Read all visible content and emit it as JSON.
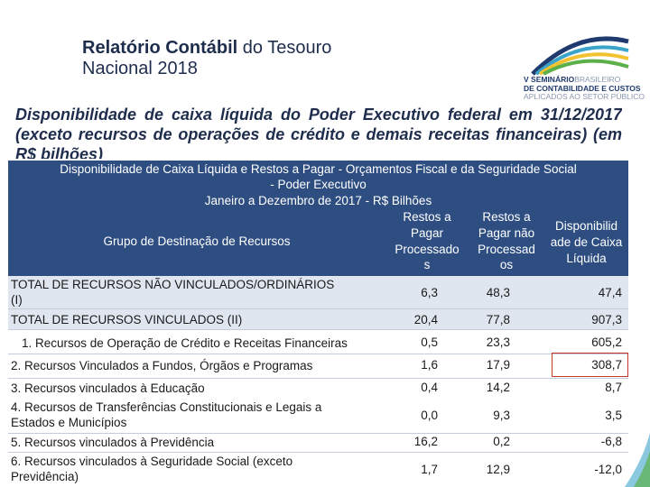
{
  "header": {
    "title_bold": "Relatório Contábil",
    "title_rest": " do Tesouro",
    "title_line2": "Nacional 2018",
    "subtitle": "Disponibilidade de caixa líquida do Poder Executivo federal em 31/12/2017 (exceto recursos de operações de crédito e demais receitas financeiras) (em R$ bilhões)"
  },
  "logo": {
    "line1_bold": "V SEMINÁRIO",
    "line1_light": "BRASILEIRO",
    "line2": "DE CONTABILIDADE E CUSTOS",
    "line3": "APLICADOS AO SETOR PÚBLICO",
    "colors": [
      "#1f3a6e",
      "#3aa3c9",
      "#f2c230",
      "#5bb04a"
    ]
  },
  "table": {
    "title_lines": [
      "Disponibilidade de Caixa Líquida e  Restos a Pagar - Orçamentos Fiscal e da Seguridade Social",
      "- Poder Executivo",
      "Janeiro a Dezembro de 2017  - R$ Bilhões"
    ],
    "group_header": "Grupo  de Destinação de Recursos",
    "columns": [
      [
        "Restos a",
        "Pagar",
        "Processado",
        "s"
      ],
      [
        "Restos a",
        "Pagar não",
        "Processad",
        "os"
      ],
      [
        "Disponibilid",
        "ade de Caixa",
        "Líquida"
      ]
    ],
    "rows": [
      {
        "label": [
          "TOTAL DE RECURSOS NÃO VINCULADOS/ORDINÁRIOS",
          "(I)"
        ],
        "values": [
          "6,3",
          "48,3",
          "47,4"
        ],
        "total": true
      },
      {
        "label": [
          "TOTAL DE RECURSOS VINCULADOS (II)"
        ],
        "values": [
          "20,4",
          "77,8",
          "907,3"
        ],
        "total": true
      },
      {
        "label": [
          "1. Recursos de Operação de Crédito e Receitas Financeiras"
        ],
        "values": [
          "0,5",
          "23,3",
          "605,2"
        ],
        "total": false
      },
      {
        "label": [
          "2. Recursos Vinculados a Fundos, Órgãos e Programas"
        ],
        "values": [
          "1,6",
          "17,9",
          "308,7"
        ],
        "total": false
      },
      {
        "label": [
          "3. Recursos vinculados à Educação"
        ],
        "values": [
          "0,4",
          "14,2",
          "8,7"
        ],
        "total": false
      },
      {
        "label": [
          "4. Recursos  de Transferências Constitucionais e Legais a",
          "Estados e Municípios"
        ],
        "values": [
          "0,0",
          "9,3",
          "3,5"
        ],
        "total": false
      },
      {
        "label": [
          "5. Recursos vinculados à Previdência"
        ],
        "values": [
          "16,2",
          "0,2",
          "-6,8"
        ],
        "total": false
      },
      {
        "label": [
          "6. Recursos vinculados à Seguridade Social (exceto",
          "Previdência)"
        ],
        "values": [
          "1,7",
          "12,9",
          "-12,0"
        ],
        "total": false
      }
    ]
  }
}
